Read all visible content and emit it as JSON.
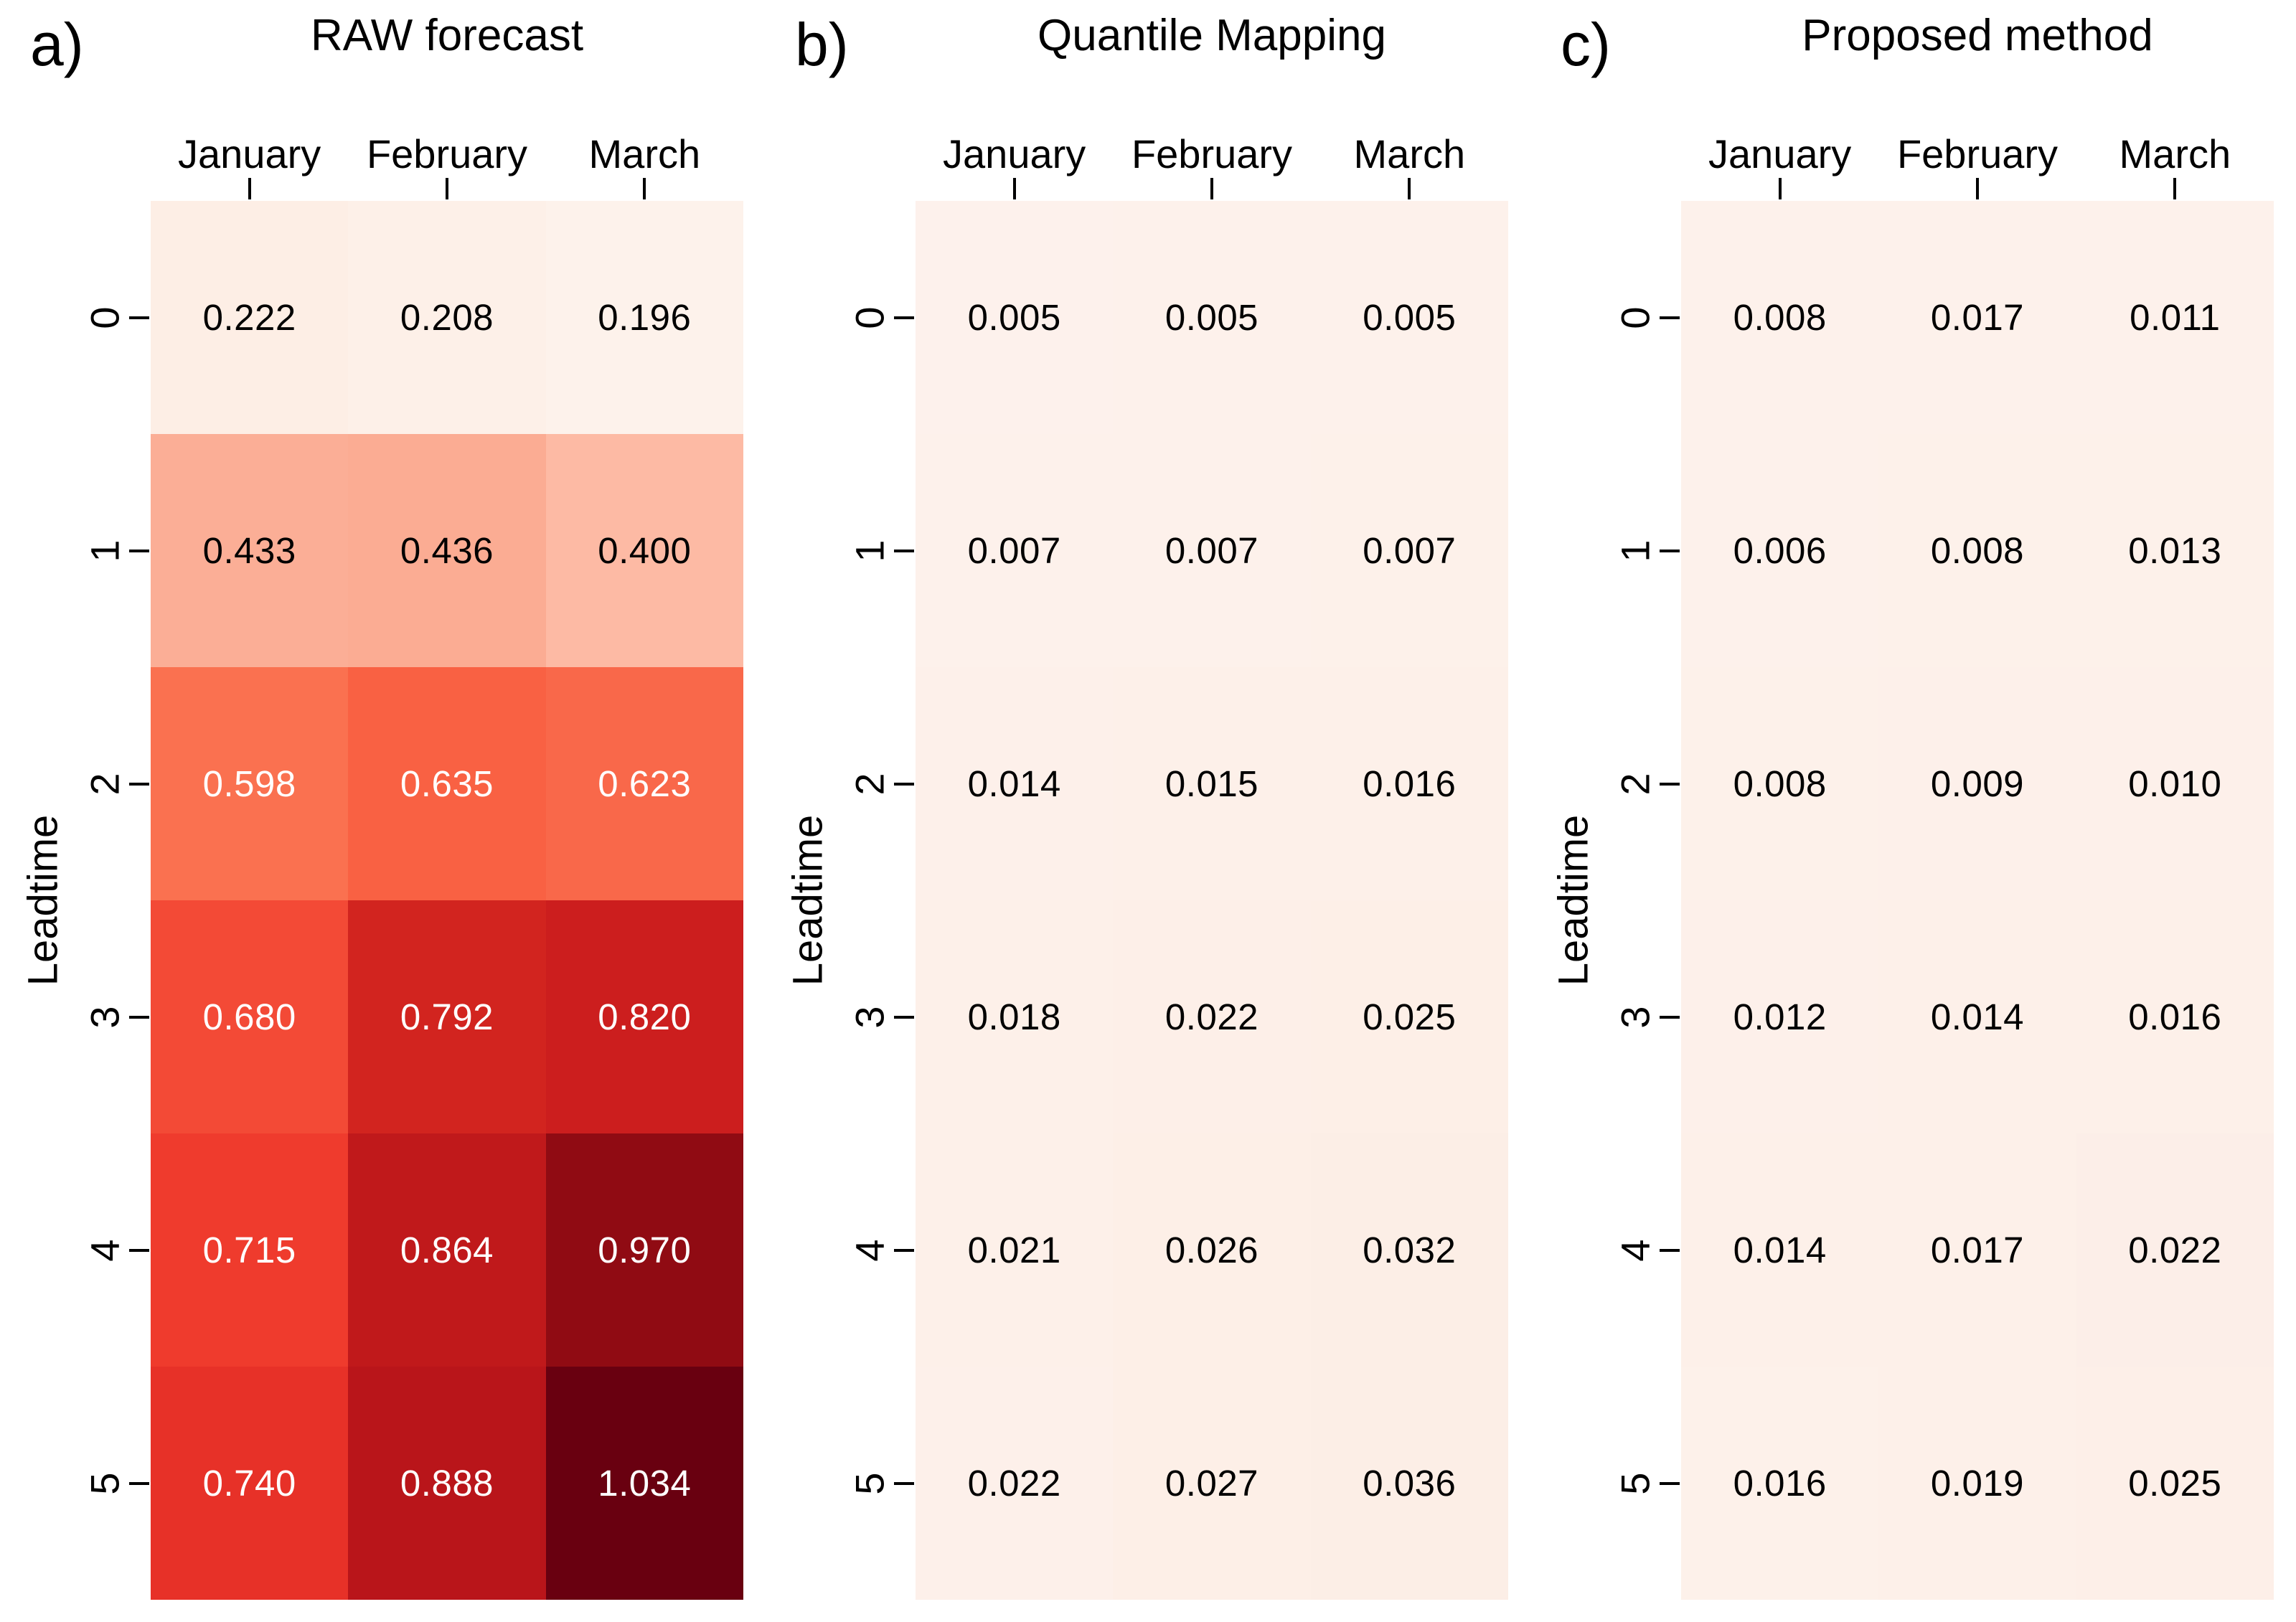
{
  "figure": {
    "y_axis_label": "Leadtime",
    "columns": [
      "January",
      "February",
      "March"
    ],
    "row_labels": [
      "0",
      "1",
      "2",
      "3",
      "4",
      "5"
    ],
    "panels": [
      {
        "letter": "a)",
        "title": "RAW forecast"
      },
      {
        "letter": "b)",
        "title": "Quantile Mapping"
      },
      {
        "letter": "c)",
        "title": "Proposed method"
      }
    ]
  },
  "chart_data": [
    {
      "type": "heatmap",
      "title": "RAW forecast",
      "panel_letter": "a)",
      "x_labels": [
        "January",
        "February",
        "March"
      ],
      "y_labels": [
        "0",
        "1",
        "2",
        "3",
        "4",
        "5"
      ],
      "ylabel": "Leadtime",
      "colormap": "Reds",
      "value_format": "3-decimals",
      "values": [
        [
          0.222,
          0.208,
          0.196
        ],
        [
          0.433,
          0.436,
          0.4
        ],
        [
          0.598,
          0.635,
          0.623
        ],
        [
          0.68,
          0.792,
          0.82
        ],
        [
          0.715,
          0.864,
          0.97
        ],
        [
          0.74,
          0.888,
          1.034
        ]
      ],
      "cell_colors": [
        [
          "#fdeee5",
          "#fdf0e8",
          "#fdf2eb"
        ],
        [
          "#fbae96",
          "#fbac93",
          "#fdbaa4"
        ],
        [
          "#fa7150",
          "#f96143",
          "#f9684a"
        ],
        [
          "#f34a36",
          "#d2241f",
          "#cc1e1e"
        ],
        [
          "#ef3b2d",
          "#c0191b",
          "#900b13"
        ],
        [
          "#e73128",
          "#b9151a",
          "#690010"
        ]
      ],
      "value_text_colors": [
        "#000000",
        "#000000",
        "#ffffff",
        "#ffffff",
        "#ffffff",
        "#ffffff"
      ]
    },
    {
      "type": "heatmap",
      "title": "Quantile Mapping",
      "panel_letter": "b)",
      "x_labels": [
        "January",
        "February",
        "March"
      ],
      "y_labels": [
        "0",
        "1",
        "2",
        "3",
        "4",
        "5"
      ],
      "ylabel": "Leadtime",
      "colormap": "Reds",
      "value_format": "3-decimals",
      "values": [
        [
          0.005,
          0.005,
          0.005
        ],
        [
          0.007,
          0.007,
          0.007
        ],
        [
          0.014,
          0.015,
          0.016
        ],
        [
          0.018,
          0.022,
          0.025
        ],
        [
          0.021,
          0.026,
          0.032
        ],
        [
          0.022,
          0.027,
          0.036
        ]
      ],
      "cell_colors": [
        [
          "#fdf1ec",
          "#fdf1eb",
          "#fdf1eb"
        ],
        [
          "#fdf1eb",
          "#fdf1eb",
          "#fdf1ea"
        ],
        [
          "#fdf0ea",
          "#fdf0e9",
          "#fdf0e9"
        ],
        [
          "#fdf0e9",
          "#fdefe8",
          "#fdefe7"
        ],
        [
          "#fdf0e9",
          "#fdefe7",
          "#fceee6"
        ],
        [
          "#fdf0ea",
          "#fdefe7",
          "#fceee6"
        ]
      ],
      "value_text_colors": [
        "#000000",
        "#000000",
        "#000000",
        "#000000",
        "#000000",
        "#000000"
      ]
    },
    {
      "type": "heatmap",
      "title": "Proposed method",
      "panel_letter": "c)",
      "x_labels": [
        "January",
        "February",
        "March"
      ],
      "y_labels": [
        "0",
        "1",
        "2",
        "3",
        "4",
        "5"
      ],
      "ylabel": "Leadtime",
      "colormap": "Reds",
      "value_format": "3-decimals",
      "values": [
        [
          0.008,
          0.017,
          0.011
        ],
        [
          0.006,
          0.008,
          0.013
        ],
        [
          0.008,
          0.009,
          0.01
        ],
        [
          0.012,
          0.014,
          0.016
        ],
        [
          0.014,
          0.017,
          0.022
        ],
        [
          0.016,
          0.019,
          0.025
        ]
      ],
      "cell_colors": [
        [
          "#fdf1eb",
          "#fdf1eb",
          "#fdf1eb"
        ],
        [
          "#fdf1eb",
          "#fdf1ea",
          "#fdf1ea"
        ],
        [
          "#fdf1ea",
          "#fdf0ea",
          "#fdf0ea"
        ],
        [
          "#fdf0ea",
          "#fdf0e9",
          "#fdf0e9"
        ],
        [
          "#fdf0e9",
          "#fdf0e9",
          "#fceee8"
        ],
        [
          "#fdf1ea",
          "#fdf0e9",
          "#fdefe8"
        ]
      ],
      "value_text_colors": [
        "#000000",
        "#000000",
        "#000000",
        "#000000",
        "#000000",
        "#000000"
      ]
    }
  ]
}
